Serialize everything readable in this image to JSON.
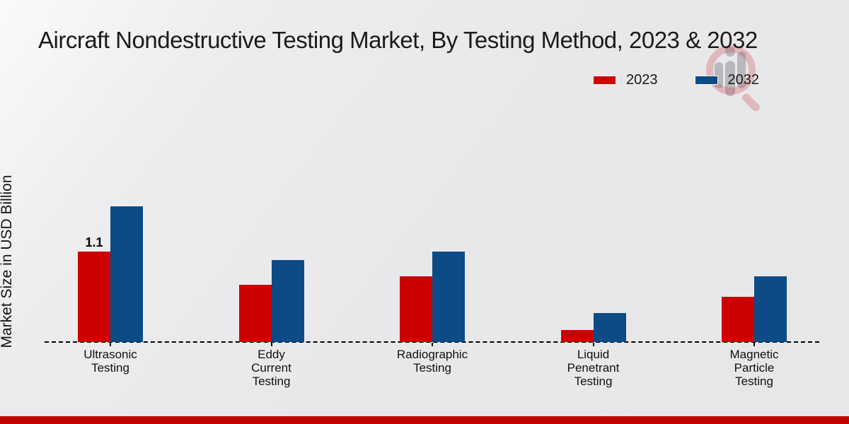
{
  "title": "Aircraft Nondestructive Testing Market, By Testing Method, 2023 & 2032",
  "legend": {
    "items": [
      {
        "label": "2023",
        "color": "#cc0000"
      },
      {
        "label": "2032",
        "color": "#0d4b87"
      }
    ]
  },
  "watermark_icon": "magnifier-bar-chart-logo",
  "colors": {
    "series_2023": "#cc0000",
    "series_2032": "#0d4b87",
    "footer_ribbon": "#c00000",
    "baseline": "#050505"
  },
  "chart_data": {
    "type": "bar",
    "title": "Aircraft Nondestructive Testing Market, By Testing Method, 2023 & 2032",
    "xlabel": "",
    "ylabel": "Market Size in USD Billion",
    "categories": [
      "Ultrasonic Testing",
      "Eddy Current Testing",
      "Radiographic Testing",
      "Liquid Penetrant Testing",
      "Magnetic Particle Testing"
    ],
    "category_lines": [
      [
        "Ultrasonic",
        "Testing"
      ],
      [
        "Eddy",
        "Current",
        "Testing"
      ],
      [
        "Radiographic",
        "Testing"
      ],
      [
        "Liquid",
        "Penetrant",
        "Testing"
      ],
      [
        "Magnetic",
        "Particle",
        "Testing"
      ]
    ],
    "series": [
      {
        "name": "2023",
        "color": "#cc0000",
        "values": [
          1.1,
          0.7,
          0.8,
          0.15,
          0.55
        ]
      },
      {
        "name": "2032",
        "color": "#0d4b87",
        "values": [
          1.65,
          1.0,
          1.1,
          0.35,
          0.8
        ]
      }
    ],
    "data_labels": [
      {
        "series": "2023",
        "category": "Ultrasonic Testing",
        "text": "1.1"
      }
    ],
    "ylim": [
      0,
      2.5
    ],
    "grid": false,
    "baseline_style": "dashed",
    "legend_position": "top-right"
  }
}
